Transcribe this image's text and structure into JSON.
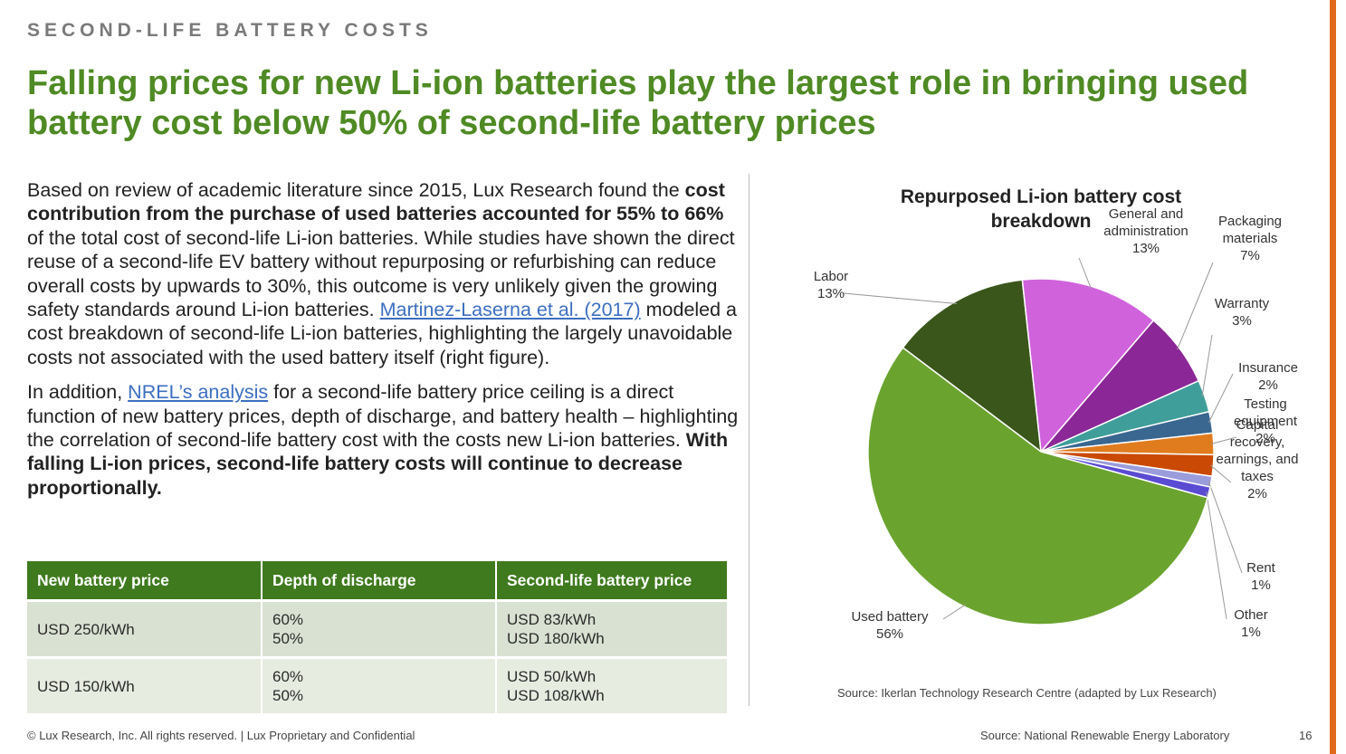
{
  "kicker": "SECOND-LIFE BATTERY COSTS",
  "headline": {
    "line1": "Falling prices for new Li-ion batteries play the largest role in bringing",
    "line2": "used battery cost below 50% of second-life battery prices"
  },
  "paragraph1": {
    "a": "Based on review of academic literature since 2015, Lux Research found the ",
    "b": "cost contribution from the purchase of used batteries accounted for 55% to 66%",
    "c": " of the total cost of second-life Li-ion batteries. While studies have shown the direct reuse of a second-life EV battery without repurposing or refurbishing can reduce overall costs by upwards to 30%, this outcome is very unlikely given the growing safety standards around Li-ion batteries. ",
    "link": "Martinez-Laserna et al. (2017)",
    "d": " modeled a cost breakdown of second-life Li-ion batteries, highlighting the largely unavoidable costs not associated with the used battery itself (right figure)."
  },
  "paragraph2": {
    "a": "In addition, ",
    "link": "NREL’s analysis",
    "b": " for a second-life battery price ceiling is a direct function of new battery prices, depth of discharge, and battery health – highlighting the correlation of second-life battery cost with the costs new Li-ion batteries. ",
    "c": "With falling Li-ion prices, second-life battery costs will continue to decrease proportionally."
  },
  "table": {
    "headers": [
      "New battery price",
      "Depth of discharge",
      "Second-life battery price"
    ],
    "rows": [
      {
        "price": "USD 250/kWh",
        "dod": [
          "60%",
          "50%"
        ],
        "second": [
          "USD 83/kWh",
          "USD 180/kWh"
        ]
      },
      {
        "price": "USD 150/kWh",
        "dod": [
          "60%",
          "50%"
        ],
        "second": [
          "USD 50/kWh",
          "USD 108/kWh"
        ]
      }
    ]
  },
  "chart_data": {
    "type": "pie",
    "title": "Repurposed Li-ion battery cost breakdown",
    "start_angle_deg": 143,
    "direction": "clockwise",
    "slices": [
      {
        "label": [
          "Labor"
        ],
        "value": 13,
        "pct": "13%",
        "color": "#3a561b"
      },
      {
        "label": [
          "General and",
          "administration"
        ],
        "value": 13,
        "pct": "13%",
        "color": "#d062dc"
      },
      {
        "label": [
          "Packaging",
          "materials"
        ],
        "value": 7,
        "pct": "7%",
        "color": "#8b2796"
      },
      {
        "label": [
          "Warranty"
        ],
        "value": 3,
        "pct": "3%",
        "color": "#3f9e9a"
      },
      {
        "label": [
          "Insurance"
        ],
        "value": 2,
        "pct": "2%",
        "color": "#3a6790"
      },
      {
        "label": [
          "Testing",
          "equipment"
        ],
        "value": 2,
        "pct": "2%",
        "color": "#e07c1e"
      },
      {
        "label": [
          "Capital",
          "recovery,",
          "earnings, and",
          "taxes"
        ],
        "value": 2,
        "pct": "2%",
        "color": "#c94905"
      },
      {
        "label": [
          "Rent"
        ],
        "value": 1,
        "pct": "1%",
        "color": "#9a9cdc"
      },
      {
        "label": [
          "Other"
        ],
        "value": 1,
        "pct": "1%",
        "color": "#5a4bd3"
      },
      {
        "label": [
          "Used battery"
        ],
        "value": 56,
        "pct": "56%",
        "color": "#6ba32f"
      }
    ]
  },
  "chart_source": "Source: Ikerlan Technology Research Centre (adapted by Lux Research)",
  "footer": {
    "copyright": "© Lux Research, Inc. All rights reserved. | Lux Proprietary and Confidential",
    "source": "Source: National Renewable Energy Laboratory",
    "page": "16"
  },
  "colors": {
    "headline": "#4f8a24",
    "table_header": "#3f7a1e",
    "accent_bar": "#e06a1b"
  }
}
